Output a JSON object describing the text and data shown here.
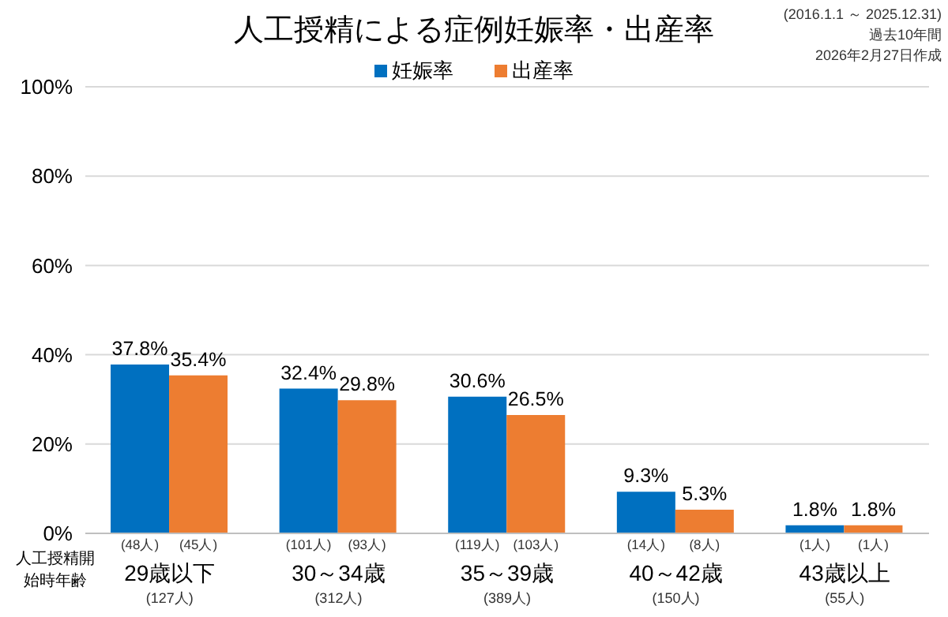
{
  "chart_data": {
    "type": "bar",
    "title": "人工授精による症例妊娠率・出産率",
    "xlabel": "人工授精開始時年齢",
    "categories": [
      "29歳以下\n(127人)",
      "30～34歳\n(312人)",
      "35～39歳\n(389人)",
      "40～42歳\n(150人)",
      "43歳以上\n(55人)"
    ],
    "series": [
      {
        "name": "妊娠率",
        "color": "#0070c0",
        "values": [
          37.8,
          32.4,
          30.6,
          9.3,
          1.8
        ],
        "value_labels": [
          "37.8%",
          "32.4%",
          "30.6%",
          "9.3%",
          "1.8%"
        ]
      },
      {
        "name": "出産率",
        "color": "#ed7d31",
        "values": [
          35.4,
          29.8,
          26.5,
          5.3,
          1.8
        ],
        "value_labels": [
          "35.4%",
          "29.8%",
          "26.5%",
          "5.3%",
          "1.8%"
        ]
      }
    ],
    "ylim": [
      0,
      100
    ],
    "yticks": [
      {
        "value": 0,
        "label": "0%"
      },
      {
        "value": 20,
        "label": "20%"
      },
      {
        "value": 40,
        "label": "40%"
      },
      {
        "value": 60,
        "label": "60%"
      },
      {
        "value": 80,
        "label": "80%"
      },
      {
        "value": 100,
        "label": "100%"
      }
    ],
    "grid": "y",
    "legend": "top",
    "annotations": [
      "(2016.1.1 ～ 2025.12.31)",
      "過去10年間",
      "2026年2月27日作成",
      "(48人)",
      "(45人)",
      "(101人)",
      "(93人)",
      "(119人)",
      "(103人)",
      "(14人)",
      "(8人)",
      "(1人)",
      "(1人)"
    ]
  }
}
